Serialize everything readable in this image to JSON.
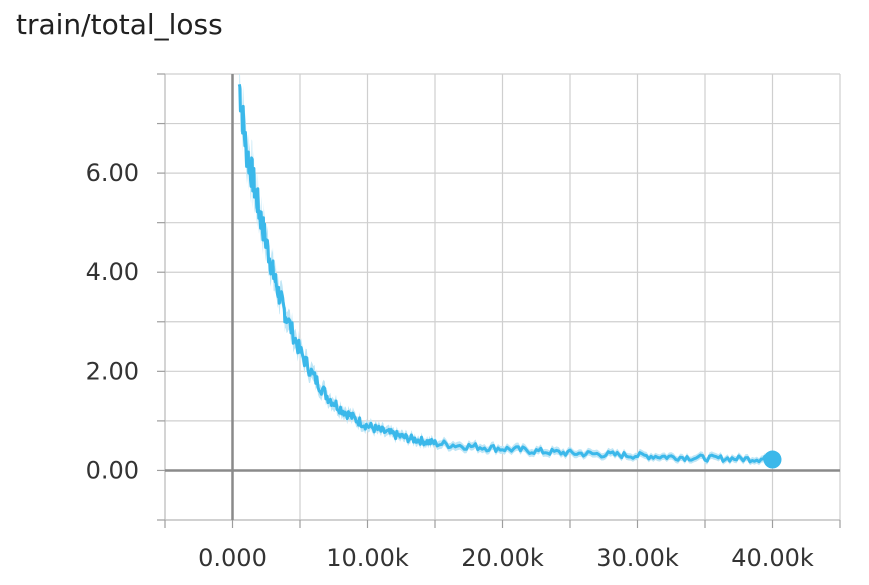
{
  "chart_data": {
    "type": "line",
    "title": "train/total_loss",
    "xlabel": "",
    "ylabel": "",
    "xlim": [
      -5000,
      45000
    ],
    "ylim": [
      -1.0,
      8.0
    ],
    "x_ticks": [
      0,
      10000,
      20000,
      30000,
      40000
    ],
    "x_tick_labels": [
      "0.000",
      "10.00k",
      "20.00k",
      "30.00k",
      "40.00k"
    ],
    "y_ticks": [
      0,
      2,
      4,
      6
    ],
    "y_tick_labels": [
      "0.00",
      "2.00",
      "4.00",
      "6.00"
    ],
    "grid": true,
    "series": [
      {
        "color": "#3bb8ea",
        "band_color": "#bfe6f6",
        "x": [
          500,
          1000,
          1500,
          2000,
          2500,
          3000,
          3500,
          4000,
          5000,
          6000,
          7000,
          8000,
          9000,
          10000,
          11000,
          12000,
          13000,
          14000,
          15000,
          17000,
          19000,
          21000,
          23000,
          25000,
          27000,
          29000,
          31000,
          33000,
          35000,
          37000,
          39000,
          40000
        ],
        "y": [
          7.8,
          6.5,
          5.9,
          5.2,
          4.6,
          4.0,
          3.5,
          3.1,
          2.4,
          1.9,
          1.5,
          1.25,
          1.05,
          0.9,
          0.8,
          0.72,
          0.65,
          0.6,
          0.55,
          0.5,
          0.46,
          0.42,
          0.38,
          0.35,
          0.33,
          0.31,
          0.29,
          0.27,
          0.25,
          0.24,
          0.23,
          0.22
        ]
      }
    ]
  }
}
